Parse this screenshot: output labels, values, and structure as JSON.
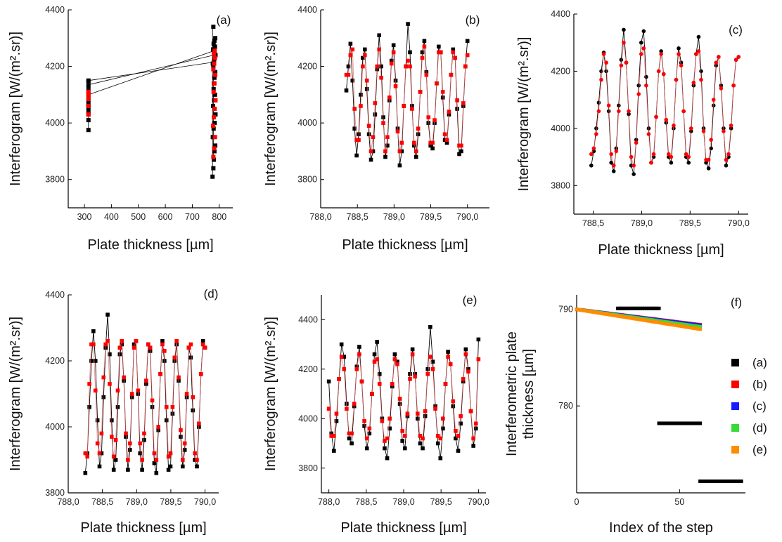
{
  "figure": {
    "series_colors": {
      "black": "#000000",
      "red": "#ff0000",
      "blue": "#1a1aff",
      "green": "#33dd33",
      "orange": "#ff8c00"
    }
  },
  "chart_data": [
    {
      "panel": "(a)",
      "type": "scatter",
      "ylabel": "Interferogram [W/(m².sr)]",
      "xlabel": "Plate thickness [µm]",
      "xlim": [
        240,
        850
      ],
      "ylim": [
        3700,
        4400
      ],
      "xticks": [
        "300",
        "400",
        "500",
        "600",
        "700",
        "800"
      ],
      "xtick_values": [
        300,
        400,
        500,
        600,
        700,
        800
      ],
      "yticks": [
        "3800",
        "4000",
        "4200",
        "4400"
      ],
      "ytick_values": [
        3800,
        4000,
        4200,
        4400
      ],
      "series": [
        {
          "color": "black",
          "x": [
            315,
            315,
            315,
            315,
            315,
            315,
            315,
            315,
            315,
            315,
            315,
            315,
            315
          ],
          "y": [
            3975,
            4010,
            4040,
            4055,
            4070,
            4085,
            4100,
            4115,
            4130,
            4145,
            4150,
            4030,
            4060
          ]
        },
        {
          "color": "red",
          "x": [
            315,
            315,
            315,
            315,
            315
          ],
          "y": [
            4030,
            4060,
            4085,
            4100,
            4110
          ]
        },
        {
          "color": "black",
          "x": [
            775,
            778,
            780,
            782,
            785,
            776,
            779,
            783,
            786,
            777,
            781,
            784,
            779,
            780,
            782,
            785,
            778,
            776,
            781,
            783,
            786,
            780,
            777,
            784,
            779,
            782,
            785,
            778
          ],
          "y": [
            3810,
            3840,
            3870,
            3900,
            3920,
            3950,
            3980,
            4000,
            4030,
            4060,
            4080,
            4100,
            4120,
            4140,
            4160,
            4180,
            4200,
            4210,
            4220,
            4230,
            4240,
            4250,
            4260,
            4270,
            4280,
            4290,
            4300,
            4340
          ]
        },
        {
          "color": "red",
          "x": [
            778,
            781,
            784,
            777,
            780,
            783,
            786,
            779,
            782,
            785,
            778,
            781,
            784,
            780,
            783
          ],
          "y": [
            3880,
            3910,
            3950,
            3990,
            4020,
            4050,
            4080,
            4110,
            4140,
            4170,
            4190,
            4210,
            4230,
            4245,
            4255
          ]
        }
      ],
      "connector_lines": [
        {
          "x": [
            315,
            780
          ],
          "y": [
            4150,
            4215
          ]
        },
        {
          "x": [
            315,
            780
          ],
          "y": [
            4135,
            4240
          ]
        },
        {
          "x": [
            315,
            780
          ],
          "y": [
            4100,
            4255
          ]
        }
      ]
    },
    {
      "panel": "(b)",
      "type": "line",
      "ylabel": "Interferogram [W/(m².sr)]",
      "xlabel": "Plate thickness [µm]",
      "xlim": [
        788.0,
        790.3
      ],
      "ylim": [
        3700,
        4400
      ],
      "xticks": [
        "788,0",
        "788,5",
        "789,0",
        "789,5",
        "790,0"
      ],
      "xtick_values": [
        788.0,
        788.5,
        789.0,
        789.5,
        790.0
      ],
      "yticks": [
        "3800",
        "4000",
        "4200",
        "4400"
      ],
      "ytick_values": [
        3800,
        4000,
        4200,
        4400
      ],
      "x_start": 788.35,
      "x_end": 790.0,
      "series": [
        {
          "color": "black",
          "y": [
            4115,
            4200,
            4280,
            4150,
            3980,
            3885,
            3960,
            4100,
            4230,
            4260,
            4120,
            3960,
            3870,
            3900,
            4030,
            4190,
            4310,
            4200,
            4020,
            3880,
            3920,
            4080,
            4220,
            4275,
            4150,
            3980,
            3850,
            3900,
            4060,
            4200,
            4350,
            4250,
            4060,
            3920,
            3880,
            3960,
            4110,
            4250,
            4290,
            4180,
            4000,
            3920,
            3910,
            4000,
            4140,
            4270,
            4250,
            4090,
            3940,
            3930,
            4030,
            4170,
            4260,
            4230,
            4050,
            3890,
            3900,
            4060,
            4200,
            4290
          ]
        },
        {
          "color": "red",
          "y": [
            4170,
            4170,
            4240,
            4260,
            4050,
            3940,
            3940,
            4060,
            4200,
            4240,
            4150,
            3990,
            3900,
            3950,
            4070,
            4200,
            4260,
            4160,
            4000,
            3900,
            3950,
            4090,
            4210,
            4250,
            4130,
            3970,
            3900,
            3930,
            4060,
            4200,
            4220,
            4200,
            4050,
            3930,
            3900,
            3980,
            4110,
            4230,
            4270,
            4170,
            4020,
            3930,
            3930,
            4010,
            4140,
            4250,
            4250,
            4110,
            3960,
            3940,
            4040,
            4170,
            4250,
            4230,
            4080,
            3920,
            3920,
            4070,
            4200,
            4240
          ]
        }
      ]
    },
    {
      "panel": "(c)",
      "type": "line",
      "ylabel": "Interferogram [W/(m².sr)]",
      "xlabel": "Plate thickness [µm]",
      "xlim": [
        788.3,
        790.1
      ],
      "ylim": [
        3700,
        4400
      ],
      "xticks": [
        "788,5",
        "789,0",
        "789,5",
        "790,0"
      ],
      "xtick_values": [
        788.5,
        789.0,
        789.5,
        790.0
      ],
      "yticks": [
        "3800",
        "4000",
        "4200",
        "4400"
      ],
      "ytick_values": [
        3800,
        4000,
        4200,
        4400
      ],
      "x_start": 788.48,
      "x_end": 790.0,
      "series": [
        {
          "color": "black",
          "y": [
            3870,
            3920,
            4000,
            4090,
            4200,
            4265,
            4200,
            4060,
            3880,
            3850,
            3930,
            4080,
            4240,
            4345,
            4230,
            4050,
            3870,
            3840,
            3960,
            4150,
            4300,
            4340,
            4180,
            4000,
            3880,
            3900,
            4040,
            4200,
            4270,
            4190,
            4020,
            3900,
            3880,
            4000,
            4170,
            4280,
            4230,
            4060,
            3900,
            3880,
            3990,
            4150,
            4260,
            4320,
            4200,
            4000,
            3880,
            3860,
            3930,
            4080,
            4220,
            4250,
            4150,
            4000,
            3870,
            3900,
            4000,
            4150,
            4240,
            4250
          ]
        },
        {
          "color": "red",
          "y": [
            3910,
            3930,
            3980,
            4060,
            4170,
            4260,
            4230,
            4080,
            3910,
            3870,
            3920,
            4060,
            4220,
            4300,
            4230,
            4060,
            3900,
            3870,
            3950,
            4120,
            4260,
            4280,
            4150,
            3980,
            3880,
            3910,
            4040,
            4200,
            4260,
            4190,
            4030,
            3910,
            3900,
            4010,
            4170,
            4260,
            4220,
            4060,
            3910,
            3900,
            4000,
            4160,
            4260,
            4270,
            4170,
            3990,
            3890,
            3890,
            3960,
            4100,
            4230,
            4250,
            4140,
            3990,
            3890,
            3910,
            4010,
            4150,
            4240,
            4250
          ]
        }
      ]
    },
    {
      "panel": "(d)",
      "type": "line",
      "ylabel": "Interferogram [W/(m².sr)]",
      "xlabel": "Plate thickness [µm]",
      "xlim": [
        788.0,
        790.2
      ],
      "ylim": [
        3800,
        4400
      ],
      "xticks": [
        "788,0",
        "788,5",
        "789,0",
        "789,5",
        "790,0"
      ],
      "xtick_values": [
        788.0,
        788.5,
        789.0,
        789.5,
        790.0
      ],
      "yticks": [
        "3800",
        "4000",
        "4200",
        "4400"
      ],
      "ytick_values": [
        3800,
        4000,
        4200,
        4400
      ],
      "x_start": 788.25,
      "x_end": 790.0,
      "series": [
        {
          "color": "black",
          "y": [
            3860,
            3920,
            4060,
            4200,
            4290,
            4200,
            4020,
            3880,
            3920,
            4090,
            4240,
            4340,
            4220,
            4020,
            3870,
            3900,
            4060,
            4220,
            4250,
            4140,
            3970,
            3870,
            3930,
            4090,
            4250,
            4260,
            4100,
            3920,
            3870,
            3960,
            4130,
            4250,
            4230,
            4060,
            3890,
            3860,
            3990,
            4160,
            4260,
            4200,
            4020,
            3870,
            3880,
            4040,
            4200,
            4250,
            4140,
            3970,
            3880,
            3930,
            4090,
            4240,
            4210,
            4050,
            3900,
            3880,
            4000,
            4160,
            4260,
            4240
          ]
        },
        {
          "color": "red",
          "y": [
            3920,
            3910,
            4130,
            4250,
            4250,
            4110,
            3950,
            3920,
            3980,
            4150,
            4250,
            4260,
            4130,
            3970,
            3910,
            3960,
            4110,
            4240,
            4260,
            4150,
            3980,
            3900,
            3950,
            4100,
            4240,
            4260,
            4110,
            3950,
            3900,
            3980,
            4140,
            4250,
            4240,
            4080,
            3920,
            3900,
            4000,
            4160,
            4250,
            4230,
            4060,
            3910,
            3920,
            4060,
            4210,
            4260,
            4150,
            3990,
            3900,
            3950,
            4100,
            4240,
            4250,
            4090,
            3920,
            3900,
            4010,
            4160,
            4250,
            4240
          ]
        }
      ]
    },
    {
      "panel": "(e)",
      "type": "line",
      "ylabel": "Interferogram [W/(m².sr)]",
      "xlabel": "Plate thickness [µm]",
      "xlim": [
        787.9,
        790.1
      ],
      "ylim": [
        3700,
        4500
      ],
      "xticks": [
        "788,0",
        "788,5",
        "789,0",
        "789,5",
        "790,0"
      ],
      "xtick_values": [
        788.0,
        788.5,
        789.0,
        789.5,
        790.0
      ],
      "yticks": [
        "3800",
        "4000",
        "4200",
        "4400"
      ],
      "ytick_values": [
        3800,
        4000,
        4200,
        4400
      ],
      "x_start": 788.0,
      "x_end": 790.0,
      "series": [
        {
          "color": "black",
          "y": [
            4150,
            3940,
            3870,
            3990,
            4160,
            4300,
            4250,
            4060,
            3920,
            3900,
            4050,
            4210,
            4290,
            4150,
            3970,
            3880,
            3940,
            4100,
            4260,
            4310,
            4180,
            4000,
            3880,
            3840,
            3960,
            4130,
            4260,
            4230,
            4060,
            3910,
            3880,
            4010,
            4180,
            4280,
            4180,
            4000,
            3900,
            3880,
            4010,
            4200,
            4370,
            4230,
            4050,
            3900,
            3840,
            3960,
            4140,
            4270,
            4220,
            4050,
            3920,
            3870,
            3980,
            4150,
            4280,
            4200,
            4030,
            3890,
            3960,
            4320
          ]
        },
        {
          "color": "red",
          "y": [
            4040,
            3930,
            3930,
            4020,
            4160,
            4250,
            4200,
            4040,
            3940,
            3940,
            4060,
            4200,
            4260,
            4150,
            3990,
            3920,
            3960,
            4100,
            4230,
            4240,
            4140,
            3990,
            3910,
            3920,
            4000,
            4140,
            4240,
            4220,
            4080,
            3950,
            3930,
            4020,
            4160,
            4260,
            4170,
            4020,
            3930,
            3920,
            4030,
            4180,
            4250,
            4200,
            4040,
            3930,
            3920,
            4000,
            4140,
            4250,
            4220,
            4070,
            3950,
            3930,
            4010,
            4160,
            4260,
            4190,
            4030,
            3920,
            3980,
            4240
          ]
        }
      ]
    },
    {
      "panel": "(f)",
      "type": "scatter",
      "ylabel_lines": [
        "Interferometric plate",
        "thickness [µm]"
      ],
      "xlabel": "Index of the step",
      "xlim": [
        0,
        82
      ],
      "ylim": [
        771,
        791.5
      ],
      "xticks": [
        "0",
        "50"
      ],
      "xtick_values": [
        0,
        50
      ],
      "yticks": [
        "780",
        "790"
      ],
      "ytick_values": [
        780,
        790
      ],
      "legend": [
        "(a)",
        "(b)",
        "(c)",
        "(d)",
        "(e)"
      ],
      "legend_colors": [
        "black",
        "red",
        "blue",
        "green",
        "orange"
      ],
      "legend_position": "right",
      "series": [
        {
          "name": "(a)",
          "color": "black",
          "segments": [
            {
              "x_start": 20,
              "x_end": 40,
              "y_start": 790.1,
              "y_end": 790.1
            },
            {
              "x_start": 40,
              "x_end": 60,
              "y_start": 778.2,
              "y_end": 778.2
            },
            {
              "x_start": 60,
              "x_end": 80,
              "y_start": 772.2,
              "y_end": 772.2
            }
          ]
        },
        {
          "name": "(b)",
          "color": "red",
          "x_start": 0,
          "x_end": 60,
          "y_start": 790.0,
          "y_end": 788.4
        },
        {
          "name": "(c)",
          "color": "blue",
          "x_start": 0,
          "x_end": 60,
          "y_start": 790.0,
          "y_end": 788.35
        },
        {
          "name": "(d)",
          "color": "green",
          "x_start": 0,
          "x_end": 60,
          "y_start": 790.0,
          "y_end": 788.2
        },
        {
          "name": "(e)",
          "color": "orange",
          "x_start": 0,
          "x_end": 60,
          "y_start": 790.0,
          "y_end": 787.95
        }
      ]
    }
  ]
}
